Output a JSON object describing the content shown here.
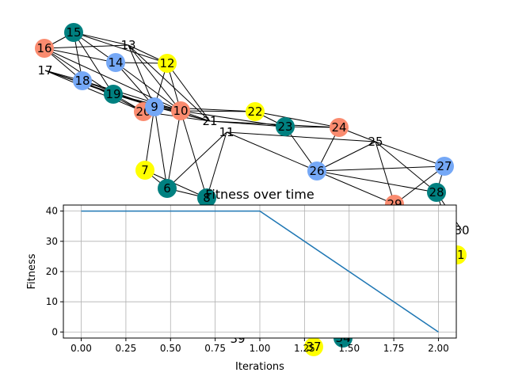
{
  "graph": {
    "edges": [
      [
        "15",
        "13"
      ],
      [
        "15",
        "14"
      ],
      [
        "15",
        "18"
      ],
      [
        "15",
        "19"
      ],
      [
        "15",
        "16"
      ],
      [
        "15",
        "12"
      ],
      [
        "16",
        "14"
      ],
      [
        "16",
        "13"
      ],
      [
        "16",
        "18"
      ],
      [
        "16",
        "19"
      ],
      [
        "16",
        "10"
      ],
      [
        "17",
        "19"
      ],
      [
        "17",
        "18"
      ],
      [
        "17",
        "20"
      ],
      [
        "17",
        "9"
      ],
      [
        "13",
        "12"
      ],
      [
        "13",
        "10"
      ],
      [
        "13",
        "9"
      ],
      [
        "13",
        "21"
      ],
      [
        "14",
        "10"
      ],
      [
        "14",
        "12"
      ],
      [
        "14",
        "9"
      ],
      [
        "18",
        "9"
      ],
      [
        "18",
        "10"
      ],
      [
        "18",
        "20"
      ],
      [
        "19",
        "9"
      ],
      [
        "19",
        "10"
      ],
      [
        "19",
        "20"
      ],
      [
        "19",
        "21"
      ],
      [
        "12",
        "9"
      ],
      [
        "12",
        "10"
      ],
      [
        "12",
        "21"
      ],
      [
        "20",
        "9"
      ],
      [
        "20",
        "21"
      ],
      [
        "9",
        "10"
      ],
      [
        "9",
        "21"
      ],
      [
        "9",
        "6"
      ],
      [
        "9",
        "22"
      ],
      [
        "10",
        "21"
      ],
      [
        "10",
        "6"
      ],
      [
        "10",
        "8"
      ],
      [
        "10",
        "22"
      ],
      [
        "10",
        "23"
      ],
      [
        "21",
        "23"
      ],
      [
        "21",
        "24"
      ],
      [
        "22",
        "23"
      ],
      [
        "22",
        "24"
      ],
      [
        "23",
        "24"
      ],
      [
        "23",
        "26"
      ],
      [
        "11",
        "26"
      ],
      [
        "11",
        "25"
      ],
      [
        "11",
        "6"
      ],
      [
        "11",
        "8"
      ],
      [
        "24",
        "25"
      ],
      [
        "24",
        "26"
      ],
      [
        "25",
        "26"
      ],
      [
        "25",
        "27"
      ],
      [
        "25",
        "28"
      ],
      [
        "25",
        "29"
      ],
      [
        "26",
        "27"
      ],
      [
        "26",
        "28"
      ],
      [
        "26",
        "29"
      ],
      [
        "27",
        "28"
      ],
      [
        "27",
        "29"
      ],
      [
        "28",
        "30"
      ],
      [
        "28",
        "31"
      ],
      [
        "7",
        "6"
      ],
      [
        "7",
        "8"
      ],
      [
        "7",
        "9"
      ],
      [
        "6",
        "8"
      ]
    ],
    "nodes": [
      {
        "id": "15",
        "color": "#008080"
      },
      {
        "id": "13",
        "color": "none"
      },
      {
        "id": "16",
        "color": "#fa8b6f"
      },
      {
        "id": "14",
        "color": "#75a8f6"
      },
      {
        "id": "12",
        "color": "#ffff00"
      },
      {
        "id": "17",
        "color": "none"
      },
      {
        "id": "18",
        "color": "#75a8f6"
      },
      {
        "id": "19",
        "color": "#008080"
      },
      {
        "id": "20",
        "color": "#fa8b6f"
      },
      {
        "id": "9",
        "color": "#75a8f6"
      },
      {
        "id": "10",
        "color": "#fa8b6f"
      },
      {
        "id": "21",
        "color": "none"
      },
      {
        "id": "22",
        "color": "#ffff00"
      },
      {
        "id": "23",
        "color": "#008080"
      },
      {
        "id": "24",
        "color": "#fa8b6f"
      },
      {
        "id": "11",
        "color": "none"
      },
      {
        "id": "25",
        "color": "none"
      },
      {
        "id": "26",
        "color": "#75a8f6"
      },
      {
        "id": "27",
        "color": "#75a8f6"
      },
      {
        "id": "28",
        "color": "#008080"
      },
      {
        "id": "7",
        "color": "#ffff00"
      },
      {
        "id": "6",
        "color": "#008080"
      },
      {
        "id": "8",
        "color": "#008080"
      },
      {
        "id": "29",
        "color": "#fa8b6f"
      },
      {
        "id": "30",
        "color": "none"
      },
      {
        "id": "31",
        "color": "#ffff00"
      },
      {
        "id": "37",
        "color": "#ffff00"
      },
      {
        "id": "34",
        "color": "#008080"
      },
      {
        "id": "39",
        "color": "none"
      }
    ]
  },
  "chart_data": {
    "type": "line",
    "title": "Fitness over time",
    "xlabel": "Iterations",
    "ylabel": "Fitness",
    "xlim": [
      -0.1,
      2.1
    ],
    "ylim": [
      -2,
      42
    ],
    "xticks": [
      "0.00",
      "0.25",
      "0.50",
      "0.75",
      "1.00",
      "1.25",
      "1.50",
      "1.75",
      "2.00"
    ],
    "yticks": [
      "0",
      "10",
      "20",
      "30",
      "40"
    ],
    "grid": true,
    "series": [
      {
        "x": [
          0,
          1,
          2
        ],
        "y": [
          40,
          40,
          0
        ],
        "color": "#1f77b4"
      }
    ]
  }
}
